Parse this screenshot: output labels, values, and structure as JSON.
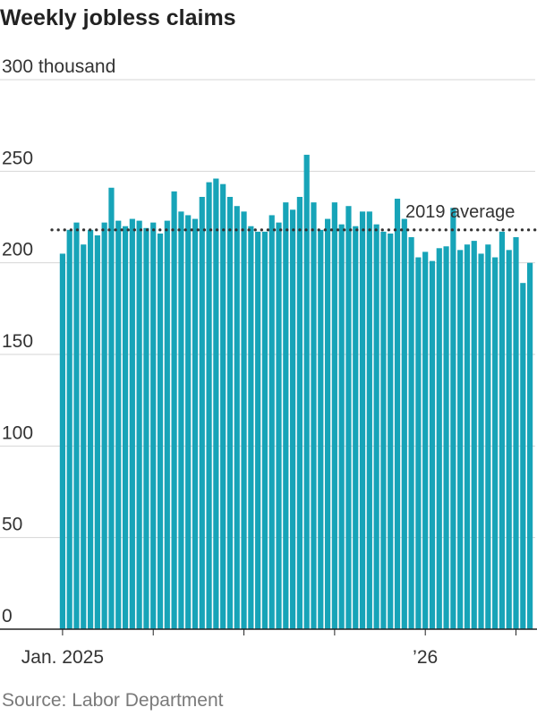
{
  "title": "Weekly jobless claims",
  "source": "Source: Labor Department",
  "colors": {
    "bar": "#17a4b8",
    "grid": "#d6d6d6",
    "axis": "#222222",
    "reference": "#333333"
  },
  "chart_data": {
    "type": "bar",
    "title": "Weekly jobless claims",
    "xlabel": "",
    "ylabel": "",
    "y_unit": "thousand",
    "ylim": [
      0,
      300
    ],
    "y_ticks": [
      0,
      50,
      100,
      150,
      200,
      250,
      300
    ],
    "y_tick_labels": [
      "0",
      "50",
      "100",
      "150",
      "200",
      "250",
      "300 thousand"
    ],
    "x_tick_labels": [
      {
        "label": "Jan. 2025",
        "index": 0
      },
      {
        "label": "’26",
        "index": 52
      }
    ],
    "minor_tick_indices": [
      13,
      26,
      39,
      65
    ],
    "grid": true,
    "reference_line": {
      "label": "2019 average",
      "value": 218
    },
    "series": [
      {
        "values": [
          205,
          218,
          222,
          210,
          218,
          215,
          222,
          241,
          223,
          220,
          224,
          223,
          219,
          222,
          216,
          223,
          239,
          228,
          226,
          224,
          236,
          244,
          246,
          243,
          236,
          231,
          228,
          220,
          217,
          217,
          226,
          222,
          233,
          229,
          236,
          259,
          233,
          218,
          224,
          233,
          221,
          231,
          220,
          228,
          228,
          221,
          217,
          216,
          235,
          224,
          214,
          203,
          206,
          201,
          208,
          209,
          230,
          207,
          210,
          212,
          205,
          210,
          203,
          217,
          207,
          214,
          189,
          200
        ]
      }
    ]
  }
}
